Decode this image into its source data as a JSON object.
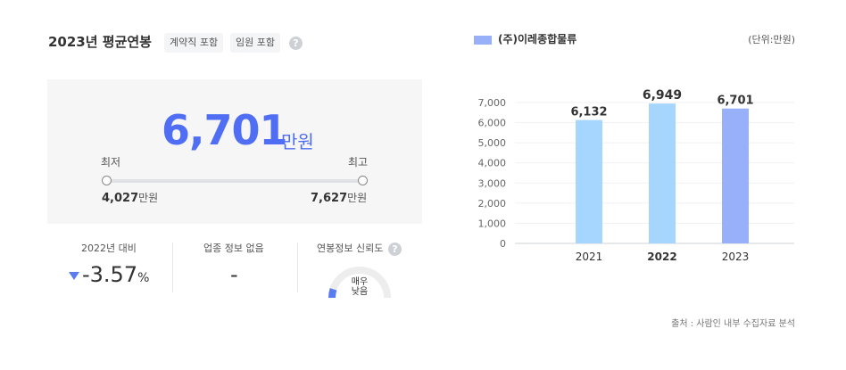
{
  "header": {
    "title": "2023년 평균연봉",
    "tag_contract": "계약직 포함",
    "tag_executive": "임원 포함",
    "help_icon": "?"
  },
  "summary": {
    "salary": "6,701",
    "salary_unit": "만원",
    "min_label": "최저",
    "max_label": "최고",
    "min_value": "4,027",
    "max_value": "7,627",
    "unit": "만원"
  },
  "stats": {
    "change_label": "2022년 대비",
    "change_value": "-3.57",
    "change_pct": "%",
    "industry_label": "업종 정보 없음",
    "industry_value": "-",
    "reliability_label": "연봉정보 신뢰도",
    "reliability_line1": "매우",
    "reliability_line2": "낮음",
    "reliability_level": 0.1
  },
  "colors": {
    "accent": "#4f6ef3",
    "bar_past": "#a6d5fd",
    "bar_current": "#98b0f9"
  },
  "chart": {
    "legend": "(주)이레종합물류",
    "unit_note": "(단위:만원)",
    "source": "출처 : 사람인 내부 수집자료 분석"
  },
  "chart_data": {
    "type": "bar",
    "categories": [
      "2021",
      "2022",
      "2023"
    ],
    "values": [
      6132,
      6949,
      6701
    ],
    "value_labels": [
      "6,132",
      "6,949",
      "6,701"
    ],
    "yticks": [
      "0",
      "1,000",
      "2,000",
      "3,000",
      "4,000",
      "5,000",
      "6,000",
      "7,000"
    ],
    "ylim": [
      0,
      7000
    ],
    "grid": true
  }
}
